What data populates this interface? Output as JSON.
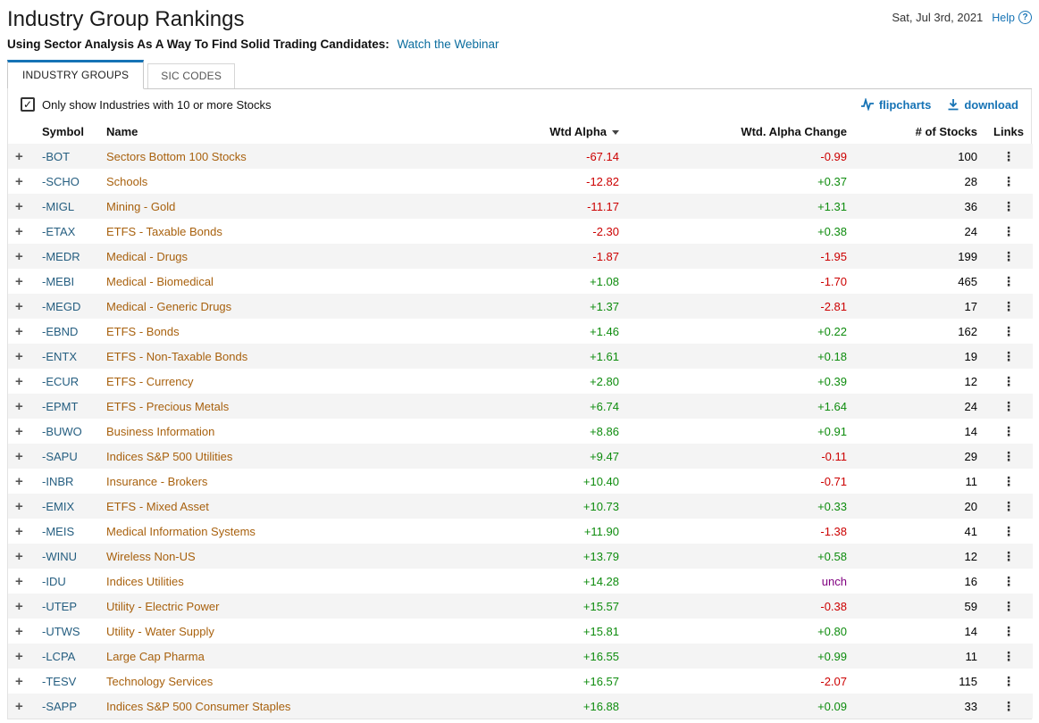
{
  "header": {
    "title": "Industry Group Rankings",
    "date": "Sat, Jul 3rd, 2021",
    "help_label": "Help",
    "subtitle": "Using Sector Analysis As A Way To Find Solid Trading Candidates:",
    "webinar_link": "Watch the Webinar"
  },
  "tabs": [
    {
      "label": "INDUSTRY GROUPS",
      "active": true
    },
    {
      "label": "SIC CODES",
      "active": false
    }
  ],
  "toolbar": {
    "filter_label": "Only show Industries with 10 or more Stocks",
    "filter_checked": true,
    "flipcharts_label": "flipcharts",
    "download_label": "download"
  },
  "table": {
    "columns": [
      "Symbol",
      "Name",
      "Wtd Alpha",
      "Wtd. Alpha Change",
      "# of Stocks",
      "Links"
    ],
    "sorted_column": "Wtd Alpha",
    "sort_direction": "asc",
    "rows": [
      {
        "symbol": "-BOT",
        "name": "Sectors Bottom 100 Stocks",
        "wtd_alpha": "-67.14",
        "alpha_change": "-0.99",
        "stocks": "100"
      },
      {
        "symbol": "-SCHO",
        "name": "Schools",
        "wtd_alpha": "-12.82",
        "alpha_change": "+0.37",
        "stocks": "28"
      },
      {
        "symbol": "-MIGL",
        "name": "Mining - Gold",
        "wtd_alpha": "-11.17",
        "alpha_change": "+1.31",
        "stocks": "36"
      },
      {
        "symbol": "-ETAX",
        "name": "ETFS - Taxable Bonds",
        "wtd_alpha": "-2.30",
        "alpha_change": "+0.38",
        "stocks": "24"
      },
      {
        "symbol": "-MEDR",
        "name": "Medical - Drugs",
        "wtd_alpha": "-1.87",
        "alpha_change": "-1.95",
        "stocks": "199"
      },
      {
        "symbol": "-MEBI",
        "name": "Medical - Biomedical",
        "wtd_alpha": "+1.08",
        "alpha_change": "-1.70",
        "stocks": "465"
      },
      {
        "symbol": "-MEGD",
        "name": "Medical - Generic Drugs",
        "wtd_alpha": "+1.37",
        "alpha_change": "-2.81",
        "stocks": "17"
      },
      {
        "symbol": "-EBND",
        "name": "ETFS - Bonds",
        "wtd_alpha": "+1.46",
        "alpha_change": "+0.22",
        "stocks": "162"
      },
      {
        "symbol": "-ENTX",
        "name": "ETFS - Non-Taxable Bonds",
        "wtd_alpha": "+1.61",
        "alpha_change": "+0.18",
        "stocks": "19"
      },
      {
        "symbol": "-ECUR",
        "name": "ETFS - Currency",
        "wtd_alpha": "+2.80",
        "alpha_change": "+0.39",
        "stocks": "12"
      },
      {
        "symbol": "-EPMT",
        "name": "ETFS - Precious Metals",
        "wtd_alpha": "+6.74",
        "alpha_change": "+1.64",
        "stocks": "24"
      },
      {
        "symbol": "-BUWO",
        "name": "Business Information",
        "wtd_alpha": "+8.86",
        "alpha_change": "+0.91",
        "stocks": "14"
      },
      {
        "symbol": "-SAPU",
        "name": "Indices S&P 500 Utilities",
        "wtd_alpha": "+9.47",
        "alpha_change": "-0.11",
        "stocks": "29"
      },
      {
        "symbol": "-INBR",
        "name": "Insurance - Brokers",
        "wtd_alpha": "+10.40",
        "alpha_change": "-0.71",
        "stocks": "11"
      },
      {
        "symbol": "-EMIX",
        "name": "ETFS - Mixed Asset",
        "wtd_alpha": "+10.73",
        "alpha_change": "+0.33",
        "stocks": "20"
      },
      {
        "symbol": "-MEIS",
        "name": "Medical Information Systems",
        "wtd_alpha": "+11.90",
        "alpha_change": "-1.38",
        "stocks": "41"
      },
      {
        "symbol": "-WINU",
        "name": "Wireless Non-US",
        "wtd_alpha": "+13.79",
        "alpha_change": "+0.58",
        "stocks": "12"
      },
      {
        "symbol": "-IDU",
        "name": "Indices Utilities",
        "wtd_alpha": "+14.28",
        "alpha_change": "unch",
        "stocks": "16"
      },
      {
        "symbol": "-UTEP",
        "name": "Utility - Electric Power",
        "wtd_alpha": "+15.57",
        "alpha_change": "-0.38",
        "stocks": "59"
      },
      {
        "symbol": "-UTWS",
        "name": "Utility - Water Supply",
        "wtd_alpha": "+15.81",
        "alpha_change": "+0.80",
        "stocks": "14"
      },
      {
        "symbol": "-LCPA",
        "name": "Large Cap Pharma",
        "wtd_alpha": "+16.55",
        "alpha_change": "+0.99",
        "stocks": "11"
      },
      {
        "symbol": "-TESV",
        "name": "Technology Services",
        "wtd_alpha": "+16.57",
        "alpha_change": "-2.07",
        "stocks": "115"
      },
      {
        "symbol": "-SAPP",
        "name": "Indices S&P 500 Consumer Staples",
        "wtd_alpha": "+16.88",
        "alpha_change": "+0.09",
        "stocks": "33"
      }
    ]
  },
  "colors": {
    "accent": "#1673b5",
    "positive": "#0e8c0e",
    "negative": "#cc0000",
    "unchanged": "#800080",
    "symbol_link": "#255e80",
    "name_link": "#a8610e"
  }
}
